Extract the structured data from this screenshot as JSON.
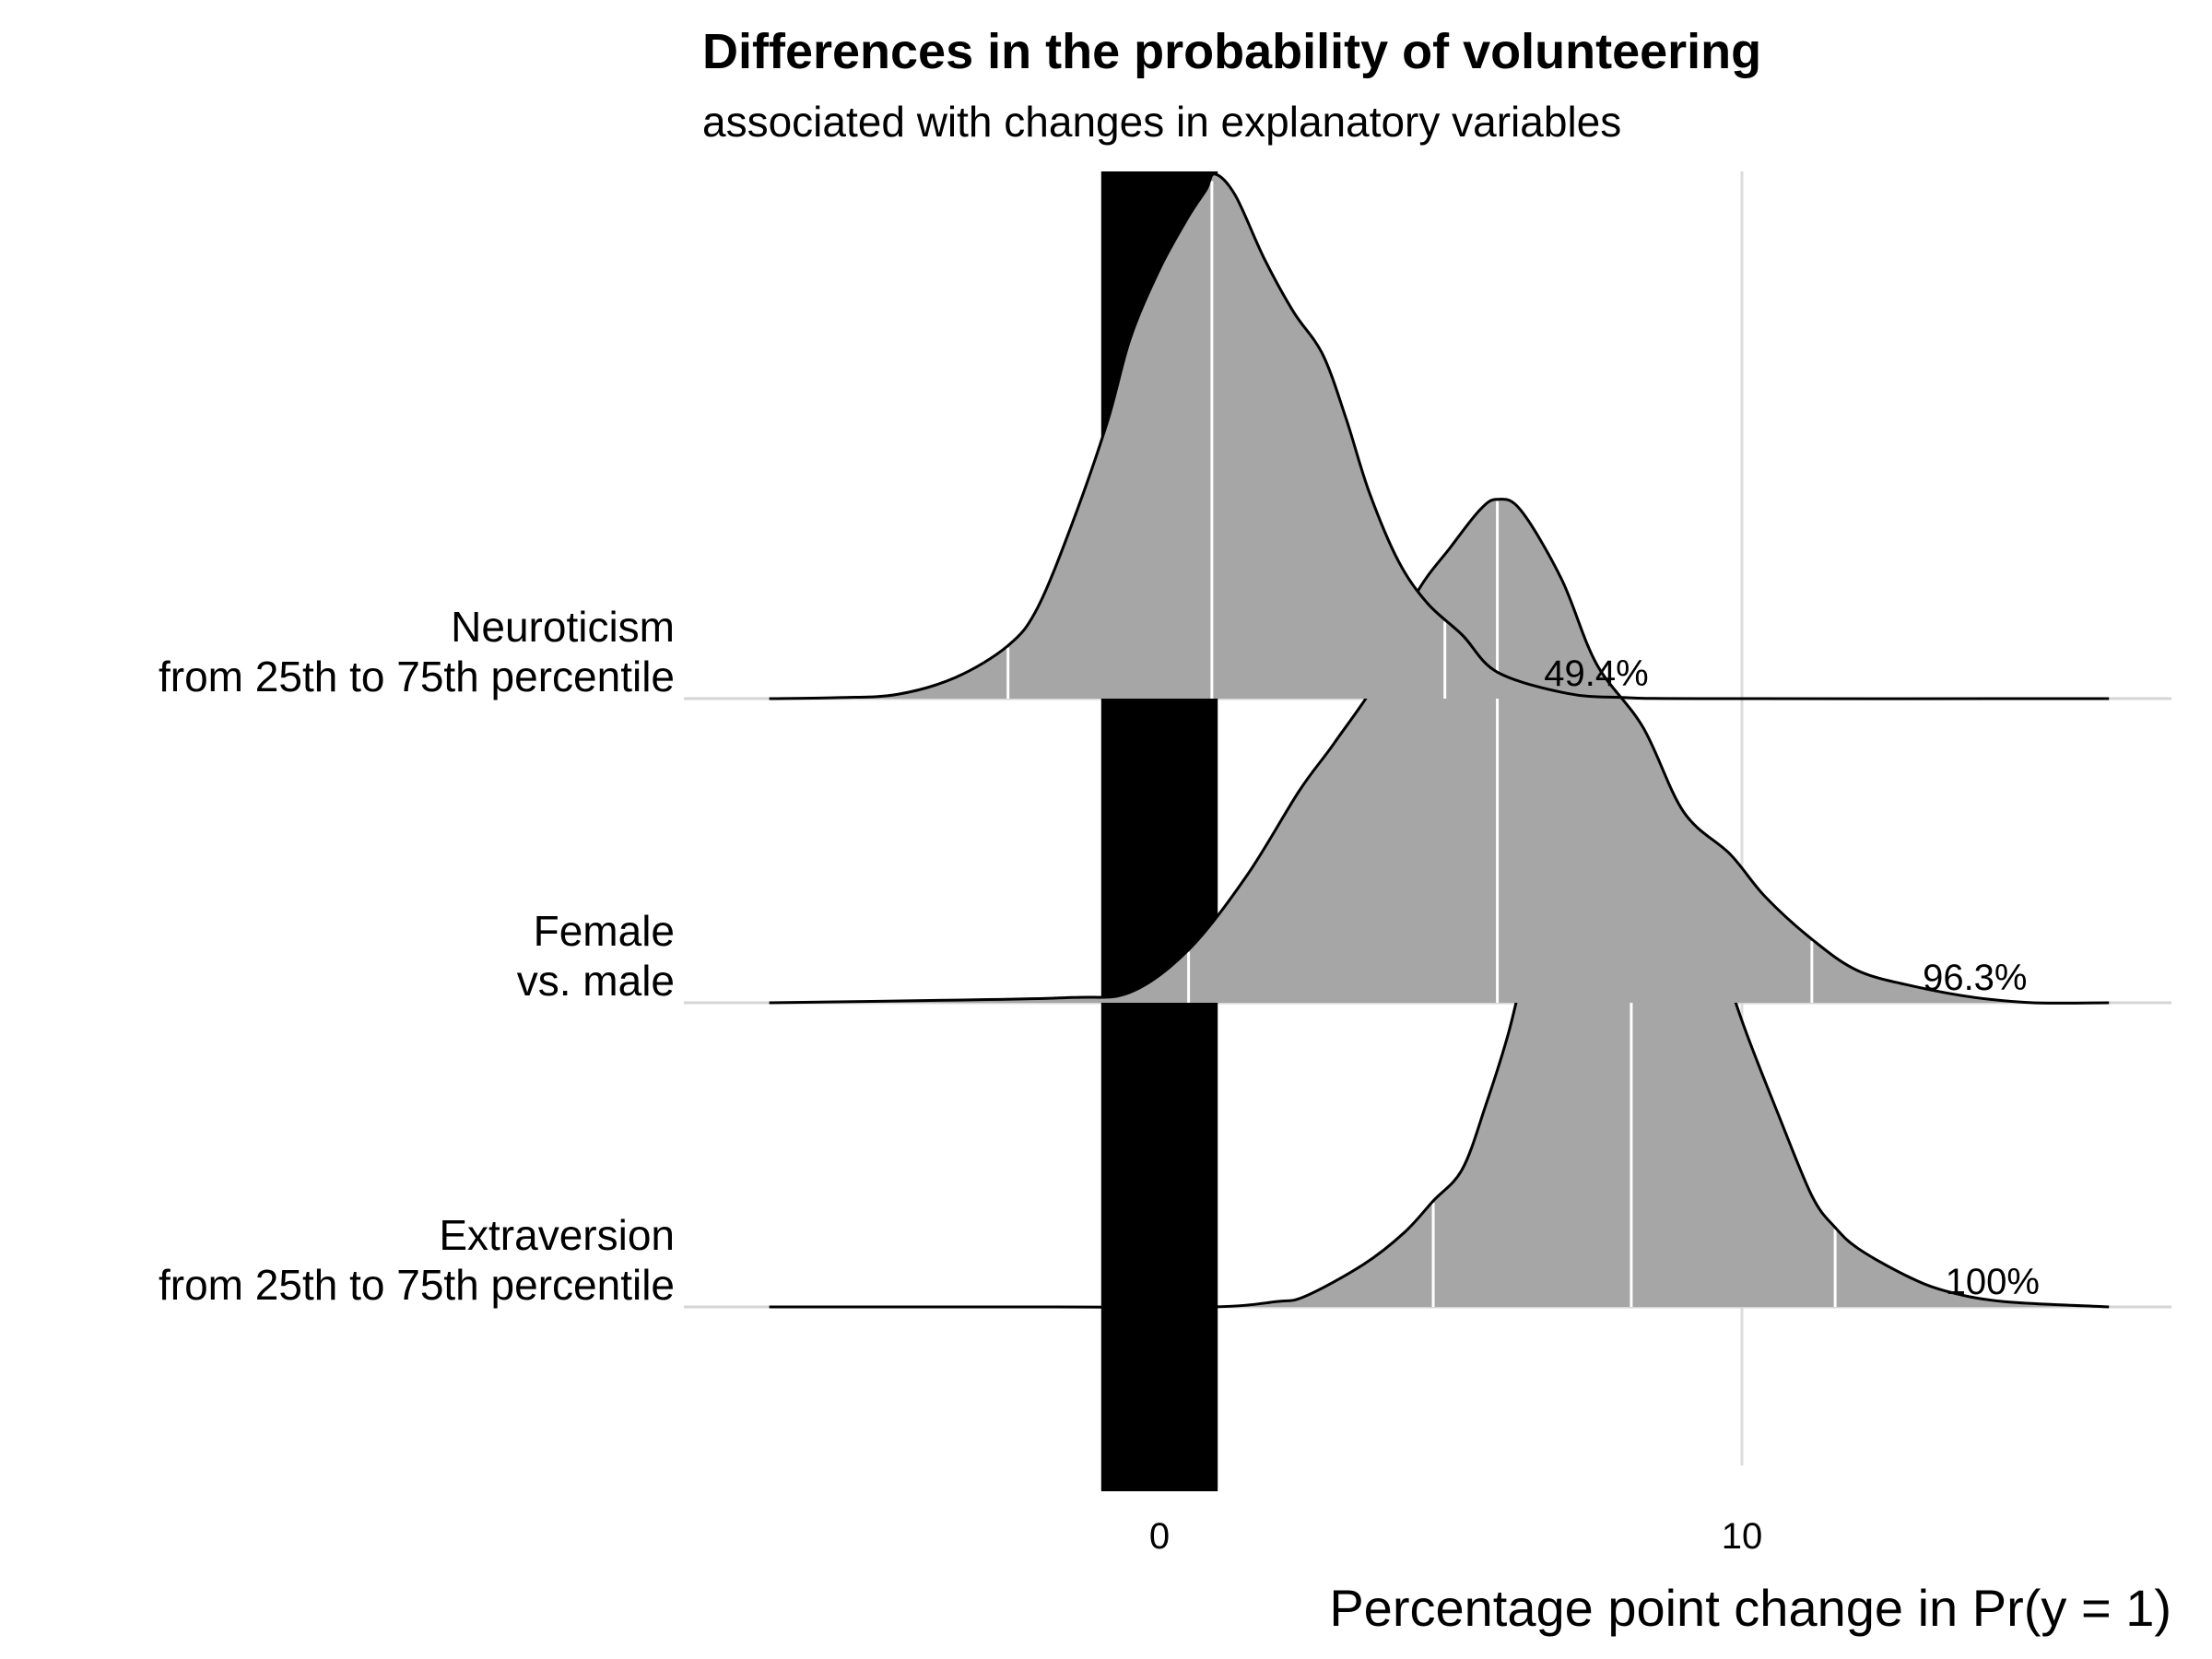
{
  "chart_data": {
    "type": "ridgeline-density",
    "title": "Differences in the probability of volunteering",
    "subtitle": "associated with changes in explanatory variables",
    "xlabel": "Percentage point change in Pr(y = 1)",
    "xlim": [
      -6.8,
      16.3
    ],
    "x_ticks": [
      0,
      10
    ],
    "x_tick_labels": [
      "0",
      "10"
    ],
    "grid": "vertical at ticks, horizontal baselines per row",
    "reference_band": {
      "from": -1,
      "to": 1,
      "color": "#000000"
    },
    "fill_color": "#a6a6a6",
    "series": [
      {
        "name": "Extraversion",
        "label_lines": [
          "Extraversion",
          "from 25th to 75th percentile"
        ],
        "quantile_lines": [
          4.7,
          8.1,
          11.6
        ],
        "prob_label": "100%",
        "prob_label_x": 14.3,
        "density": [
          [
            -6.7,
            0
          ],
          [
            -2,
            0
          ],
          [
            0.9,
            0
          ],
          [
            2,
            0.01
          ],
          [
            2.5,
            0.02
          ],
          [
            3.5,
            0.08
          ],
          [
            4.2,
            0.14
          ],
          [
            4.7,
            0.2
          ],
          [
            5.2,
            0.26
          ],
          [
            5.6,
            0.38
          ],
          [
            6,
            0.52
          ],
          [
            6.5,
            0.74
          ],
          [
            7,
            0.85
          ],
          [
            7.6,
            0.96
          ],
          [
            8.1,
            1
          ],
          [
            8.4,
            0.99
          ],
          [
            8.9,
            0.91
          ],
          [
            9.4,
            0.74
          ],
          [
            10,
            0.54
          ],
          [
            10.6,
            0.37
          ],
          [
            11.2,
            0.21
          ],
          [
            11.6,
            0.15
          ],
          [
            12,
            0.11
          ],
          [
            12.8,
            0.06
          ],
          [
            13.5,
            0.03
          ],
          [
            14.5,
            0.01
          ],
          [
            16.3,
            0
          ]
        ]
      },
      {
        "name": "Female",
        "label_lines": [
          "Female",
          "vs. male"
        ],
        "quantile_lines": [
          0.5,
          5.8,
          11.2
        ],
        "prob_label": "96.3%",
        "prob_label_x": 14.0,
        "density": [
          [
            -6.7,
            0
          ],
          [
            -3.5,
            0.005
          ],
          [
            -1.5,
            0.01
          ],
          [
            -0.5,
            0.02
          ],
          [
            0.5,
            0.1
          ],
          [
            1.5,
            0.24
          ],
          [
            2.4,
            0.4
          ],
          [
            3,
            0.49
          ],
          [
            3.8,
            0.62
          ],
          [
            4.4,
            0.77
          ],
          [
            5,
            0.86
          ],
          [
            5.5,
            0.93
          ],
          [
            5.8,
            0.95
          ],
          [
            6.2,
            0.93
          ],
          [
            6.9,
            0.8
          ],
          [
            7.5,
            0.64
          ],
          [
            8.3,
            0.52
          ],
          [
            9,
            0.36
          ],
          [
            9.8,
            0.28
          ],
          [
            10.4,
            0.2
          ],
          [
            11.2,
            0.12
          ],
          [
            12,
            0.06
          ],
          [
            13,
            0.03
          ],
          [
            14,
            0.01
          ],
          [
            15,
            0
          ],
          [
            16.3,
            0
          ]
        ]
      },
      {
        "name": "Neuroticism",
        "label_lines": [
          "Neuroticism",
          "from 25th to 75th percentile"
        ],
        "quantile_lines": [
          -2.6,
          0.9,
          4.9
        ],
        "prob_label": "49.4%",
        "prob_label_x": 7.5,
        "density": [
          [
            -6.7,
            0
          ],
          [
            -5.5,
            0.002
          ],
          [
            -4.5,
            0.008
          ],
          [
            -3.5,
            0.04
          ],
          [
            -2.6,
            0.1
          ],
          [
            -2.1,
            0.17
          ],
          [
            -1.5,
            0.33
          ],
          [
            -0.9,
            0.52
          ],
          [
            -0.5,
            0.68
          ],
          [
            0,
            0.81
          ],
          [
            0.5,
            0.91
          ],
          [
            0.8,
            0.96
          ],
          [
            0.95,
            0.99
          ],
          [
            1.3,
            0.95
          ],
          [
            1.8,
            0.83
          ],
          [
            2.3,
            0.73
          ],
          [
            2.8,
            0.65
          ],
          [
            3.2,
            0.53
          ],
          [
            3.6,
            0.39
          ],
          [
            4.1,
            0.26
          ],
          [
            4.6,
            0.18
          ],
          [
            5.2,
            0.12
          ],
          [
            5.8,
            0.05
          ],
          [
            7,
            0.01
          ],
          [
            8,
            0.002
          ],
          [
            9.5,
            0
          ],
          [
            16.3,
            0
          ]
        ]
      }
    ]
  }
}
